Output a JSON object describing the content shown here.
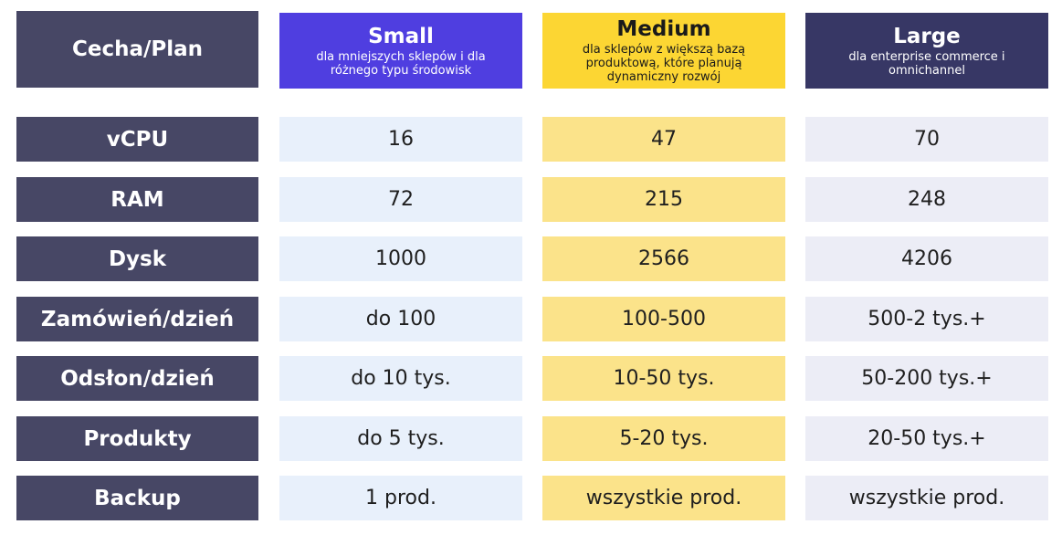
{
  "header": {
    "feature_label": "Cecha/Plan",
    "plans": [
      {
        "name": "Small",
        "description": "dla mniejszych sklepów i dla różnego typu środowisk"
      },
      {
        "name": "Medium",
        "description": "dla sklepów z większą bazą produktową, które planują dynamiczny rozwój"
      },
      {
        "name": "Large",
        "description": "dla enterprise commerce i omnichannel"
      }
    ]
  },
  "rows": [
    {
      "label": "vCPU",
      "values": [
        "16",
        "47",
        "70"
      ]
    },
    {
      "label": "RAM",
      "values": [
        "72",
        "215",
        "248"
      ]
    },
    {
      "label": "Dysk",
      "values": [
        "1000",
        "2566",
        "4206"
      ]
    },
    {
      "label": "Zamówień/dzień",
      "values": [
        "do 100",
        "100-500",
        "500-2 tys.+"
      ]
    },
    {
      "label": "Odsłon/dzień",
      "values": [
        "do 10 tys.",
        "10-50 tys.",
        "50-200 tys.+"
      ]
    },
    {
      "label": "Produkty",
      "values": [
        "do 5 tys.",
        "5-20 tys.",
        "20-50 tys.+"
      ]
    },
    {
      "label": "Backup",
      "values": [
        "1 prod.",
        "wszystkie prod.",
        "wszystkie prod."
      ]
    }
  ],
  "colors": {
    "label_bg": "#474765",
    "small_header": "#4f3ee0",
    "medium_header": "#fcd633",
    "large_header": "#373765",
    "small_cell": "#e8f0fb",
    "medium_cell": "#fbe38a",
    "large_cell": "#ecedf6"
  }
}
